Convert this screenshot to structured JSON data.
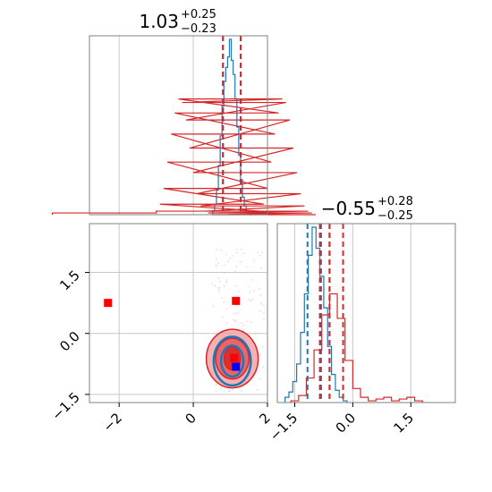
{
  "chart_data": [
    {
      "panel": "marginal-param1",
      "type": "histogram",
      "title": {
        "value": "1.03",
        "plus": "+0.25",
        "minus": "−0.23"
      },
      "xlim": [
        -2.8,
        2.0
      ],
      "grid": true,
      "quantiles": {
        "blue": [
          0.8,
          1.28
        ],
        "red": [
          0.8,
          1.28
        ]
      },
      "series": [
        {
          "color": "#1f77b4",
          "x": [
            0.55,
            0.6,
            0.65,
            0.7,
            0.75,
            0.8,
            0.85,
            0.9,
            0.95,
            1.0,
            1.05,
            1.1,
            1.15,
            1.2,
            1.25,
            1.3,
            1.35,
            1.4,
            1.45,
            1.5,
            1.55
          ],
          "y": [
            0.02,
            0.06,
            0.14,
            0.28,
            0.45,
            0.62,
            0.76,
            0.84,
            0.9,
            1.0,
            0.88,
            0.8,
            0.66,
            0.5,
            0.34,
            0.2,
            0.1,
            0.05,
            0.02,
            0.01,
            0.0
          ]
        },
        {
          "color": "#d62728",
          "x": [
            -2.4,
            0.4,
            0.5,
            0.6,
            0.7,
            0.8,
            0.9,
            1.0,
            1.1,
            1.2,
            1.3,
            1.4,
            1.5,
            1.6,
            1.7,
            1.8,
            1.9
          ],
          "y": [
            0.01,
            0.02,
            0.06,
            0.15,
            0.3,
            0.46,
            0.58,
            0.66,
            0.64,
            0.54,
            0.38,
            0.24,
            0.12,
            0.05,
            0.02,
            0.01,
            0.0
          ]
        }
      ]
    },
    {
      "panel": "joint",
      "type": "scatter",
      "xlim": [
        -2.8,
        2.0
      ],
      "ylim": [
        -1.7,
        2.7
      ],
      "xticks": [
        "−2",
        "0",
        "2"
      ],
      "yticks": [
        "−1.5",
        "0.0",
        "1.5"
      ],
      "xtick_values": [
        -2,
        0,
        2
      ],
      "ytick_values": [
        -1.5,
        0.0,
        1.5
      ],
      "grid": true,
      "markers": [
        {
          "color": "#ff0000",
          "x": -2.3,
          "y": 0.75
        },
        {
          "color": "#ff0000",
          "x": 1.15,
          "y": 0.8
        },
        {
          "color": "#ff0000",
          "x": 1.1,
          "y": -0.6
        },
        {
          "color": "#0000ff",
          "x": 1.15,
          "y": -0.82
        }
      ],
      "contours": {
        "red": {
          "center": [
            1.05,
            -0.62
          ],
          "radii": [
            [
              0.7,
              0.72
            ],
            [
              0.45,
              0.5
            ],
            [
              0.22,
              0.28
            ]
          ]
        },
        "blue": {
          "center": [
            1.05,
            -0.68
          ],
          "radii": [
            [
              0.5,
              0.6
            ],
            [
              0.3,
              0.38
            ]
          ]
        }
      }
    },
    {
      "panel": "marginal-param2",
      "type": "histogram",
      "title": {
        "value": "−0.55",
        "plus": "+0.28",
        "minus": "−0.25"
      },
      "xlim": [
        -1.95,
        2.65
      ],
      "xticks": [
        "−1.5",
        "0.0",
        "1.5"
      ],
      "xtick_values": [
        -1.5,
        0.0,
        1.5
      ],
      "grid": true,
      "quantiles": {
        "blue": [
          -1.17,
          -0.82,
          -0.6
        ],
        "red": [
          -0.85,
          -0.6,
          -0.25
        ]
      },
      "series": [
        {
          "color": "#1f77b4",
          "x": [
            -1.7,
            -1.6,
            -1.5,
            -1.4,
            -1.3,
            -1.2,
            -1.1,
            -1.0,
            -0.9,
            -0.8,
            -0.7,
            -0.6,
            -0.5,
            -0.4,
            -0.3,
            -0.2
          ],
          "y": [
            0.03,
            0.06,
            0.12,
            0.22,
            0.4,
            0.62,
            0.84,
            1.0,
            0.88,
            0.72,
            0.54,
            0.32,
            0.16,
            0.07,
            0.03,
            0.01
          ]
        },
        {
          "color": "#d62728",
          "x": [
            -1.5,
            -1.3,
            -1.1,
            -0.9,
            -0.7,
            -0.5,
            -0.3,
            -0.1,
            0.1,
            0.3,
            0.5,
            0.7,
            0.9,
            1.1,
            1.3,
            1.5,
            1.7
          ],
          "y": [
            0.01,
            0.04,
            0.14,
            0.3,
            0.5,
            0.62,
            0.48,
            0.24,
            0.08,
            0.03,
            0.01,
            0.02,
            0.03,
            0.01,
            0.02,
            0.03,
            0.01
          ]
        }
      ]
    }
  ]
}
